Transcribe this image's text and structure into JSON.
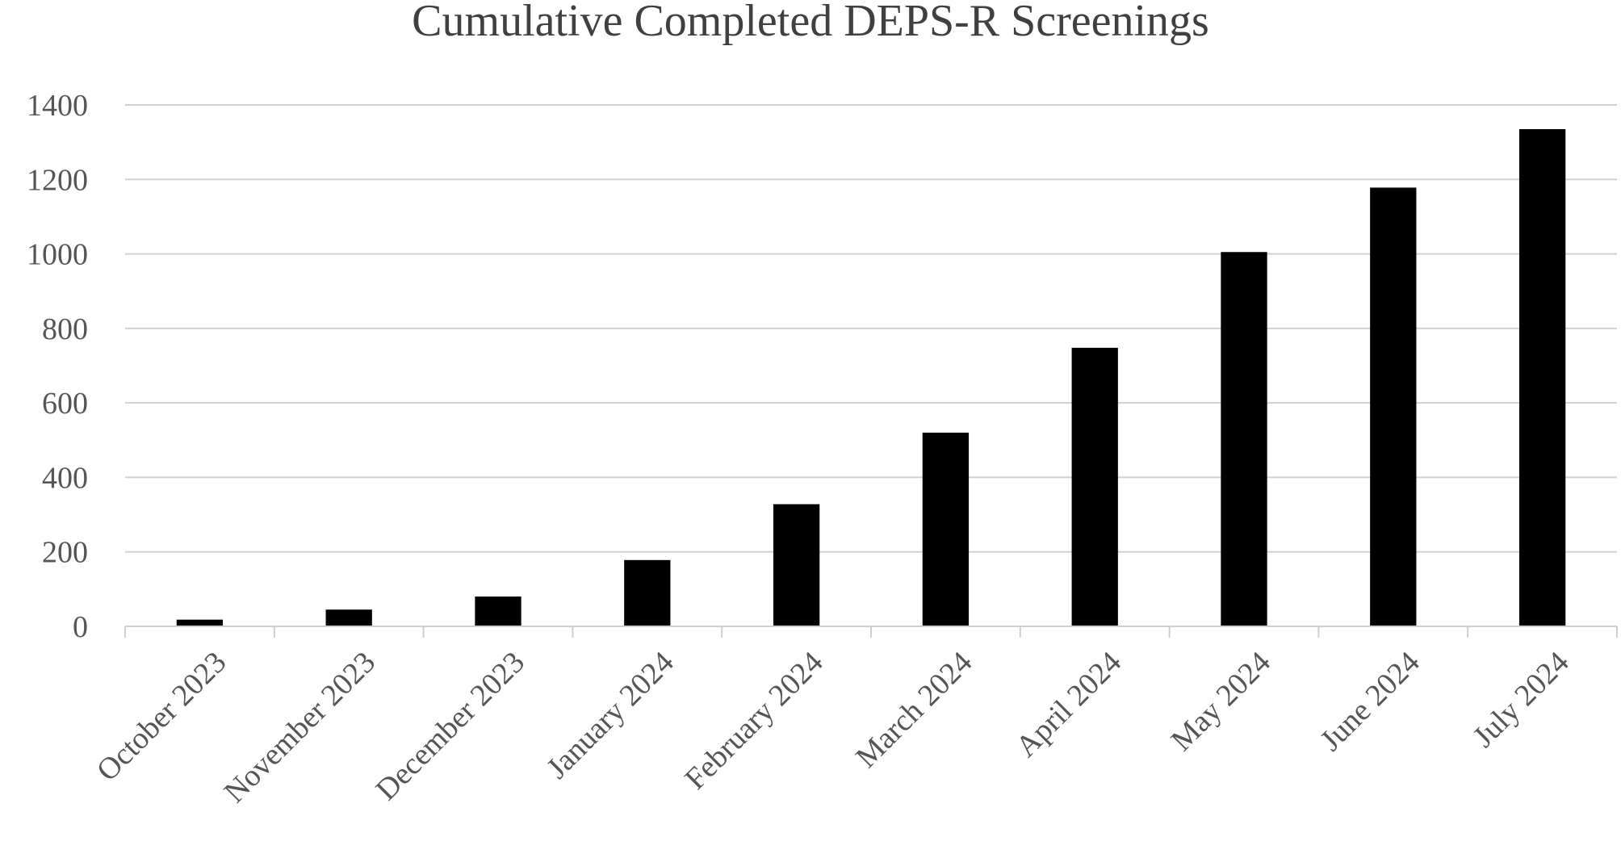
{
  "chart_data": {
    "type": "bar",
    "title": "Cumulative Completed DEPS-R Screenings",
    "xlabel": "",
    "ylabel": "",
    "categories": [
      "October 2023",
      "November 2023",
      "December 2023",
      "January 2024",
      "February 2024",
      "March 2024",
      "April 2024",
      "May 2024",
      "June 2024",
      "July 2024"
    ],
    "values": [
      18,
      45,
      80,
      178,
      328,
      520,
      748,
      1005,
      1178,
      1335
    ],
    "ylim": [
      0,
      1400
    ],
    "yticks": [
      0,
      200,
      400,
      600,
      800,
      1000,
      1200,
      1400
    ],
    "grid": true,
    "legend": "none",
    "bar_color": "#000000"
  }
}
